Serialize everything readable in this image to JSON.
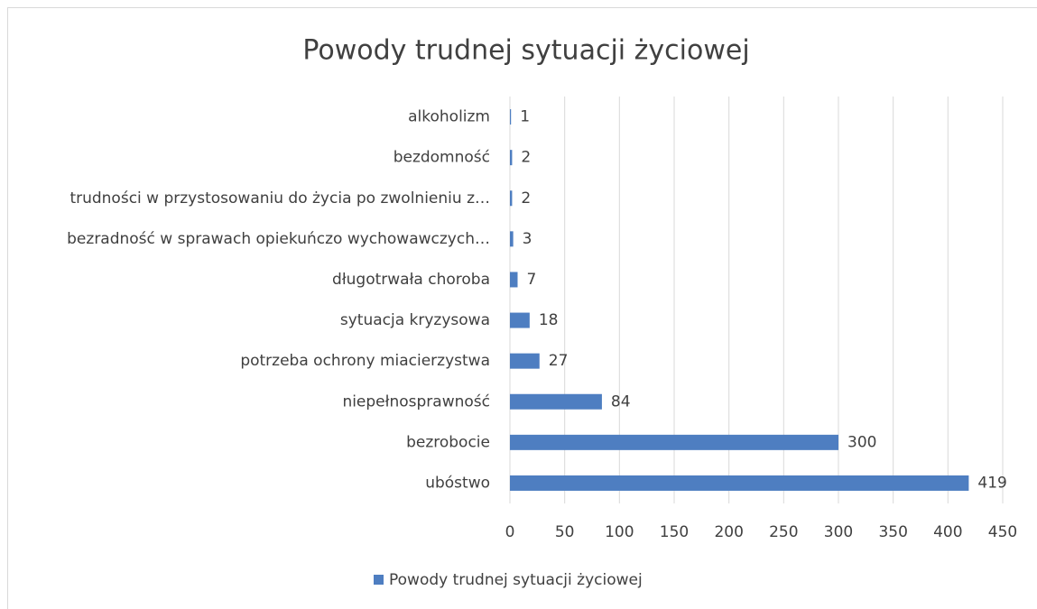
{
  "chart_data": {
    "type": "bar",
    "orientation": "horizontal",
    "title": "Powody trudnej sytuacji życiowej",
    "categories": [
      "alkoholizm",
      "bezdomność",
      "trudności w przystosowaniu do życia po zwolnieniu z…",
      "bezradność w sprawach opiekuńczo wychowawczych…",
      "długotrwała choroba",
      "sytuacja kryzysowa",
      "potrzeba ochrony miacierzystwa",
      "niepełnosprawność",
      "bezrobocie",
      "ubóstwo"
    ],
    "series": [
      {
        "name": "Powody trudnej sytuacji życiowej",
        "color": "#4e7ec1",
        "values": [
          1,
          2,
          2,
          3,
          7,
          18,
          27,
          84,
          300,
          419
        ]
      }
    ],
    "xlim": [
      0,
      450
    ],
    "xticks": [
      0,
      50,
      100,
      150,
      200,
      250,
      300,
      350,
      400,
      450
    ],
    "grid": true,
    "legend": "bottom"
  }
}
